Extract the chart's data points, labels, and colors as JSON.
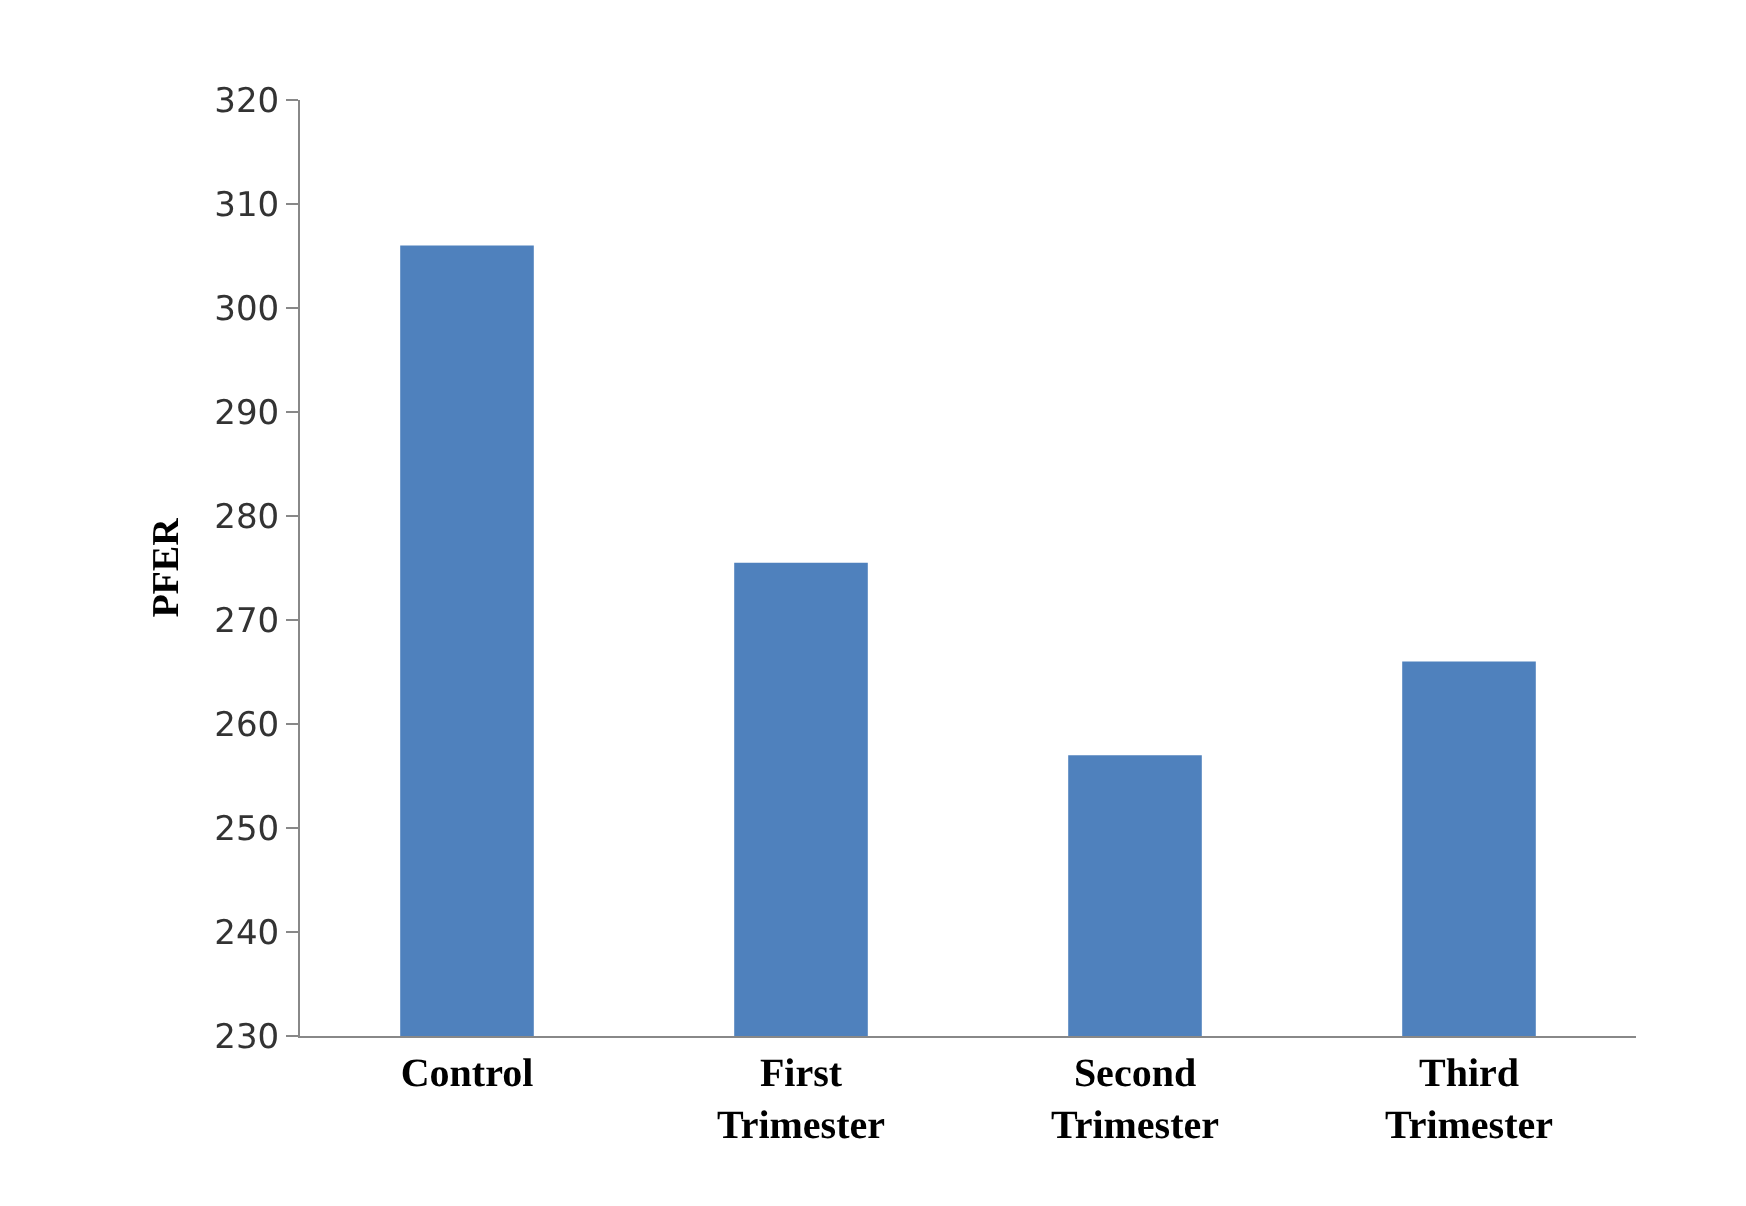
{
  "chart_data": {
    "type": "bar",
    "ylabel": "PFER",
    "categories": [
      "Control",
      "First Trimester",
      "Second Trimester",
      "Third Trimester"
    ],
    "values": [
      306,
      275.5,
      257,
      266
    ],
    "color": "#4f81bd",
    "ylim": [
      230,
      320
    ],
    "yticks": [
      230,
      240,
      250,
      260,
      270,
      280,
      290,
      300,
      310,
      320
    ],
    "grid": false,
    "legend": false
  }
}
